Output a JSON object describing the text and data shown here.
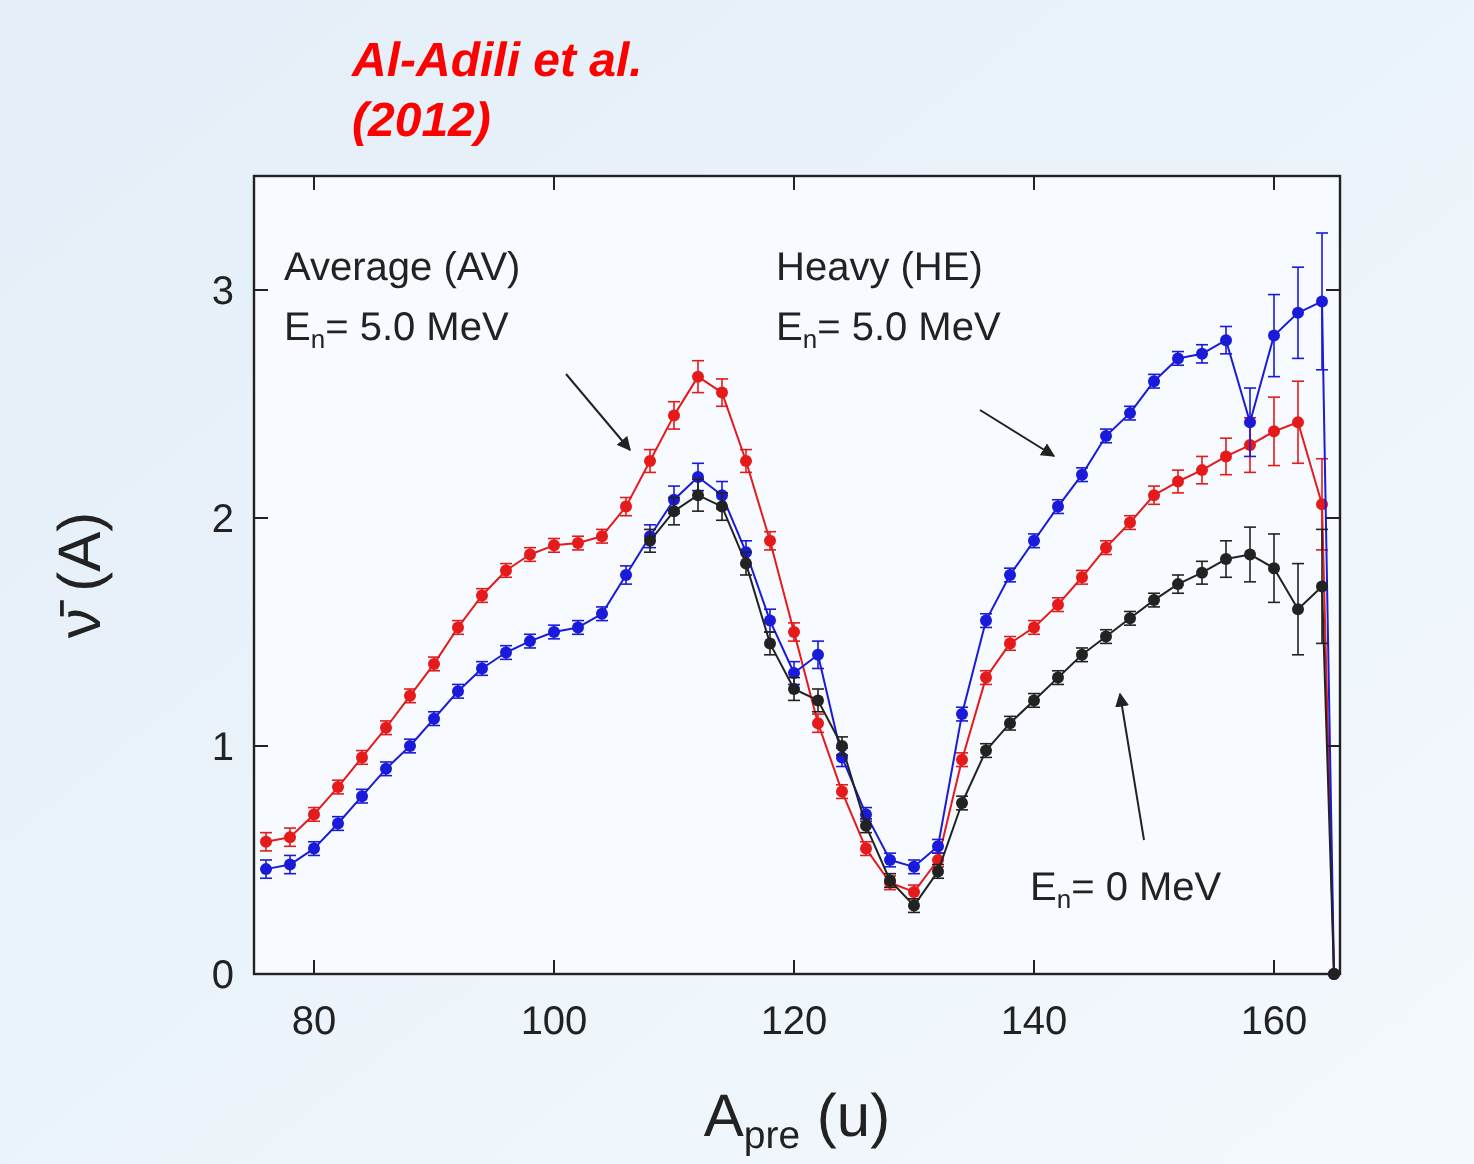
{
  "chart_data": {
    "type": "line",
    "title": "Al-Adili et al. (2012)",
    "xlabel": "A$_{pre}$ (u)",
    "ylabel": "ν̄ (A)",
    "x": [
      76,
      78,
      80,
      82,
      84,
      86,
      88,
      90,
      92,
      94,
      96,
      98,
      100,
      102,
      104,
      106,
      108,
      110,
      112,
      114,
      116,
      118,
      120,
      122,
      124,
      126,
      128,
      130,
      132,
      134,
      136,
      138,
      140,
      142,
      144,
      146,
      148,
      150,
      152,
      154,
      156,
      158,
      160,
      162,
      164,
      165
    ],
    "series": [
      {
        "color": "#e51a1a",
        "values": [
          0.58,
          0.6,
          0.7,
          0.82,
          0.95,
          1.08,
          1.22,
          1.36,
          1.52,
          1.66,
          1.77,
          1.84,
          1.88,
          1.89,
          1.92,
          2.05,
          2.25,
          2.45,
          2.62,
          2.55,
          2.25,
          1.9,
          1.5,
          1.1,
          0.8,
          0.55,
          0.4,
          0.36,
          0.5,
          0.94,
          1.3,
          1.45,
          1.52,
          1.62,
          1.74,
          1.87,
          1.98,
          2.1,
          2.16,
          2.21,
          2.27,
          2.32,
          2.38,
          2.42,
          2.06,
          0
        ],
        "errors": [
          0.04,
          0.04,
          0.03,
          0.03,
          0.03,
          0.03,
          0.03,
          0.03,
          0.03,
          0.03,
          0.03,
          0.03,
          0.03,
          0.03,
          0.03,
          0.04,
          0.05,
          0.06,
          0.07,
          0.06,
          0.05,
          0.04,
          0.04,
          0.04,
          0.03,
          0.03,
          0.03,
          0.03,
          0.03,
          0.03,
          0.03,
          0.03,
          0.03,
          0.03,
          0.03,
          0.03,
          0.03,
          0.04,
          0.05,
          0.06,
          0.08,
          0.12,
          0.15,
          0.18,
          0.2,
          null
        ]
      },
      {
        "color": "#1a1ad9",
        "values": [
          0.46,
          0.48,
          0.55,
          0.66,
          0.78,
          0.9,
          1.0,
          1.12,
          1.24,
          1.34,
          1.41,
          1.46,
          1.5,
          1.52,
          1.58,
          1.75,
          1.92,
          2.08,
          2.18,
          2.1,
          1.85,
          1.55,
          1.32,
          1.4,
          0.95,
          0.7,
          0.5,
          0.47,
          0.56,
          1.14,
          1.55,
          1.75,
          1.9,
          2.05,
          2.19,
          2.36,
          2.46,
          2.6,
          2.7,
          2.72,
          2.78,
          2.42,
          2.8,
          2.9,
          2.95,
          0
        ],
        "errors": [
          0.04,
          0.04,
          0.03,
          0.03,
          0.03,
          0.03,
          0.03,
          0.03,
          0.03,
          0.03,
          0.03,
          0.03,
          0.03,
          0.03,
          0.03,
          0.04,
          0.05,
          0.06,
          0.06,
          0.06,
          0.05,
          0.05,
          0.05,
          0.06,
          0.04,
          0.03,
          0.03,
          0.03,
          0.03,
          0.03,
          0.03,
          0.03,
          0.03,
          0.03,
          0.03,
          0.03,
          0.03,
          0.03,
          0.03,
          0.04,
          0.06,
          0.15,
          0.18,
          0.2,
          0.3,
          null
        ]
      },
      {
        "color": "#222222",
        "values": [
          null,
          null,
          null,
          null,
          null,
          null,
          null,
          null,
          null,
          null,
          null,
          null,
          null,
          null,
          null,
          null,
          1.9,
          2.03,
          2.1,
          2.05,
          1.8,
          1.45,
          1.25,
          1.2,
          1.0,
          0.65,
          0.41,
          0.3,
          0.45,
          0.75,
          0.98,
          1.1,
          1.2,
          1.3,
          1.4,
          1.48,
          1.56,
          1.64,
          1.71,
          1.76,
          1.82,
          1.84,
          1.78,
          1.6,
          1.7,
          0
        ],
        "errors": [
          null,
          null,
          null,
          null,
          null,
          null,
          null,
          null,
          null,
          null,
          null,
          null,
          null,
          null,
          null,
          null,
          0.05,
          0.06,
          0.07,
          0.06,
          0.05,
          0.05,
          0.05,
          0.05,
          0.04,
          0.03,
          0.03,
          0.03,
          0.03,
          0.03,
          0.03,
          0.03,
          0.03,
          0.03,
          0.03,
          0.03,
          0.03,
          0.03,
          0.04,
          0.05,
          0.08,
          0.12,
          0.15,
          0.2,
          0.25,
          null
        ]
      }
    ],
    "xlim": [
      75,
      165.5
    ],
    "ylim": [
      0,
      3.5
    ],
    "xticks": [
      80,
      100,
      120,
      140,
      160
    ],
    "yticks": [
      0,
      1,
      2,
      3
    ],
    "marker": "circle",
    "line_style": "solid",
    "grid": false,
    "annotations": [
      "Average (AV)\nE$_{n}$= 5.0 MeV",
      "Heavy (HE)\nE$_{n}$= 5.0 MeV",
      "E$_{n}$= 0 MeV"
    ]
  }
}
